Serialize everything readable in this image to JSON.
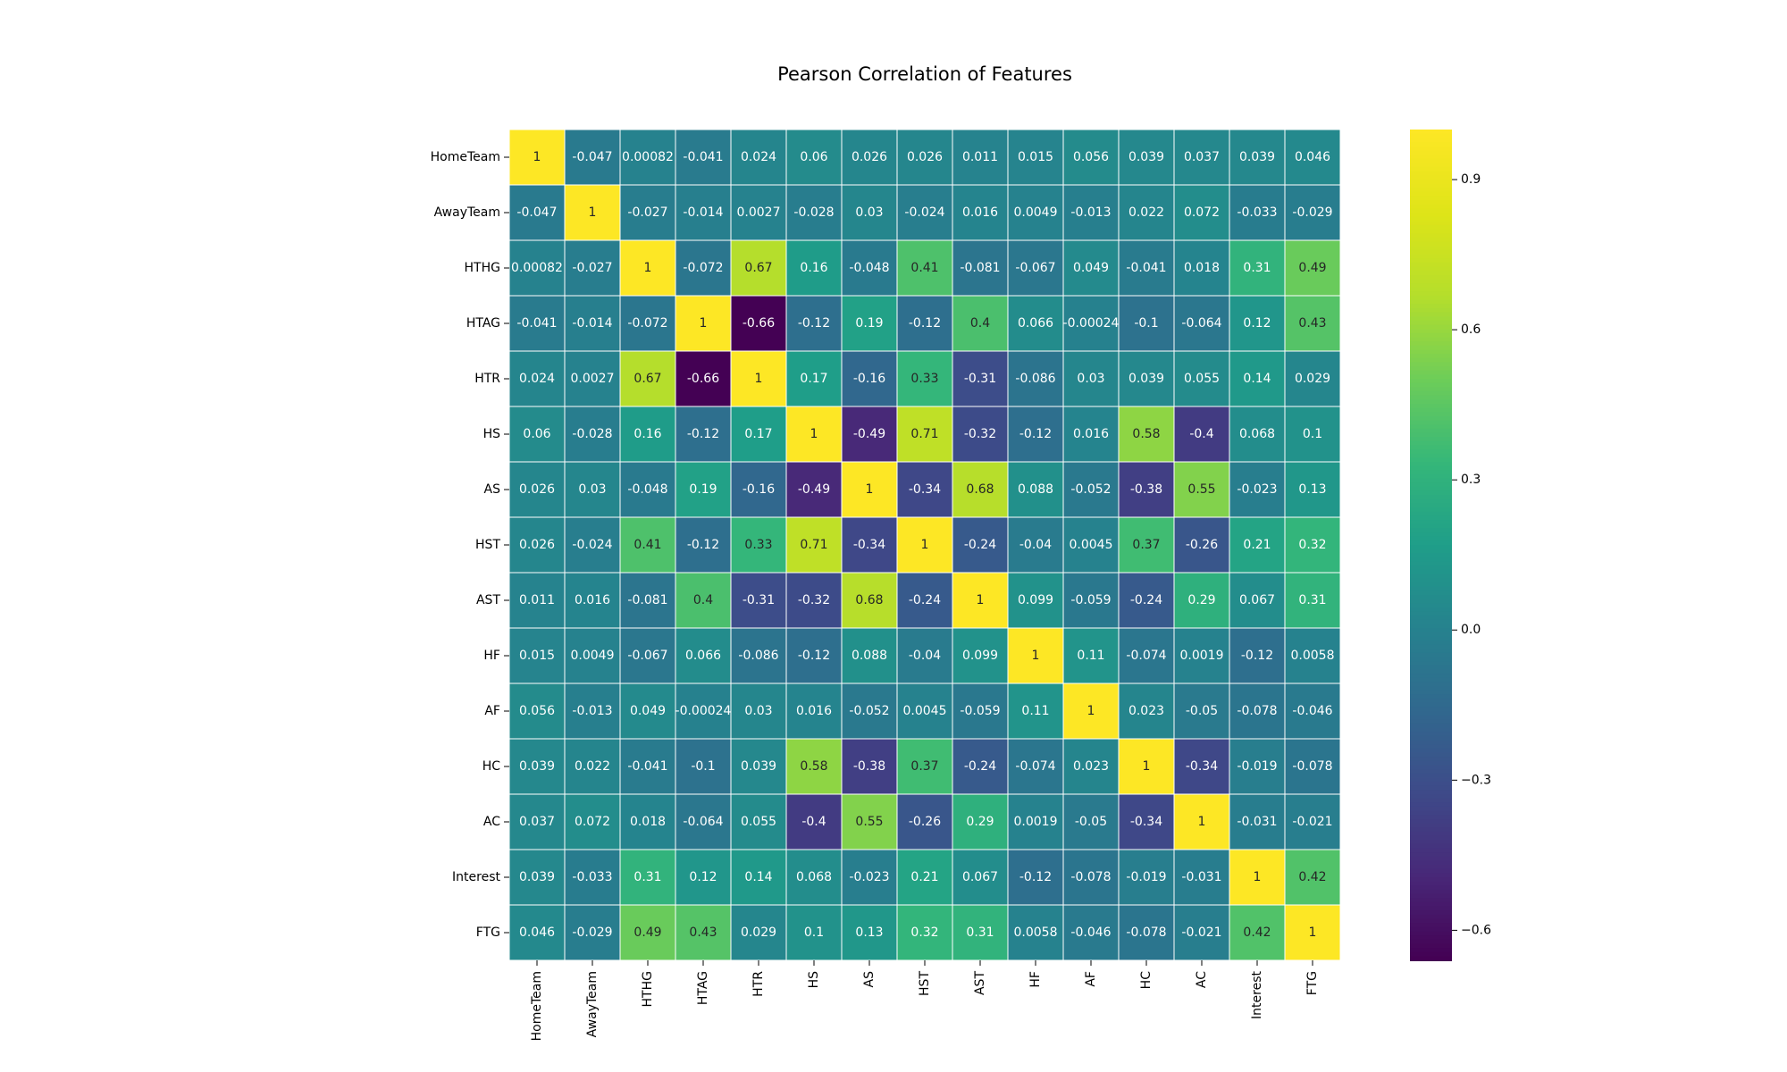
{
  "chart_data": {
    "type": "heatmap",
    "title": "Pearson Correlation of Features",
    "labels": [
      "HomeTeam",
      "AwayTeam",
      "HTHG",
      "HTAG",
      "HTR",
      "HS",
      "AS",
      "HST",
      "AST",
      "HF",
      "AF",
      "HC",
      "AC",
      "Interest",
      "FTG"
    ],
    "matrix": [
      [
        1,
        -0.047,
        0.00082,
        -0.041,
        0.024,
        0.06,
        0.026,
        0.026,
        0.011,
        0.015,
        0.056,
        0.039,
        0.037,
        0.039,
        0.046
      ],
      [
        -0.047,
        1,
        -0.027,
        -0.014,
        0.0027,
        -0.028,
        0.03,
        -0.024,
        0.016,
        0.0049,
        -0.013,
        0.022,
        0.072,
        -0.033,
        -0.029
      ],
      [
        0.00082,
        -0.027,
        1,
        -0.072,
        0.67,
        0.16,
        -0.048,
        0.41,
        -0.081,
        -0.067,
        0.049,
        -0.041,
        0.018,
        0.31,
        0.49
      ],
      [
        -0.041,
        -0.014,
        -0.072,
        1,
        -0.66,
        -0.12,
        0.19,
        -0.12,
        0.4,
        0.066,
        -0.00024,
        -0.1,
        -0.064,
        0.12,
        0.43
      ],
      [
        0.024,
        0.0027,
        0.67,
        -0.66,
        1,
        0.17,
        -0.16,
        0.33,
        -0.31,
        -0.086,
        0.03,
        0.039,
        0.055,
        0.14,
        0.029
      ],
      [
        0.06,
        -0.028,
        0.16,
        -0.12,
        0.17,
        1,
        -0.49,
        0.71,
        -0.32,
        -0.12,
        0.016,
        0.58,
        -0.4,
        0.068,
        0.1
      ],
      [
        0.026,
        0.03,
        -0.048,
        0.19,
        -0.16,
        -0.49,
        1,
        -0.34,
        0.68,
        0.088,
        -0.052,
        -0.38,
        0.55,
        -0.023,
        0.13
      ],
      [
        0.026,
        -0.024,
        0.41,
        -0.12,
        0.33,
        0.71,
        -0.34,
        1,
        -0.24,
        -0.04,
        0.0045,
        0.37,
        -0.26,
        0.21,
        0.32
      ],
      [
        0.011,
        0.016,
        -0.081,
        0.4,
        -0.31,
        -0.32,
        0.68,
        -0.24,
        1,
        0.099,
        -0.059,
        -0.24,
        0.29,
        0.067,
        0.31
      ],
      [
        0.015,
        0.0049,
        -0.067,
        0.066,
        -0.086,
        -0.12,
        0.088,
        -0.04,
        0.099,
        1,
        0.11,
        -0.074,
        0.0019,
        -0.12,
        0.0058
      ],
      [
        0.056,
        -0.013,
        0.049,
        -0.00024,
        0.03,
        0.016,
        -0.052,
        0.0045,
        -0.059,
        0.11,
        1,
        0.023,
        -0.05,
        -0.078,
        -0.046
      ],
      [
        0.039,
        0.022,
        -0.041,
        -0.1,
        0.039,
        0.58,
        -0.38,
        0.37,
        -0.24,
        -0.074,
        0.023,
        1,
        -0.34,
        -0.019,
        -0.078
      ],
      [
        0.037,
        0.072,
        0.018,
        -0.064,
        0.055,
        -0.4,
        0.55,
        -0.26,
        0.29,
        0.0019,
        -0.05,
        -0.34,
        1,
        -0.031,
        -0.021
      ],
      [
        0.039,
        -0.033,
        0.31,
        0.12,
        0.14,
        0.068,
        -0.023,
        0.21,
        0.067,
        -0.12,
        -0.078,
        -0.019,
        -0.031,
        1,
        0.42
      ],
      [
        0.046,
        -0.029,
        0.49,
        0.43,
        0.029,
        0.1,
        0.13,
        0.32,
        0.31,
        0.0058,
        -0.046,
        -0.078,
        -0.021,
        0.42,
        1
      ]
    ],
    "colormap": "viridis",
    "vmin": -0.66,
    "vmax": 1,
    "colorbar_ticks": [
      0.9,
      0.6,
      0.3,
      0.0,
      -0.3,
      -0.6
    ],
    "colorbar_tick_labels": [
      "0.9",
      "0.6",
      "0.3",
      "0.0",
      "−0.3",
      "−0.6"
    ],
    "annotations": true,
    "grid_color": "#ffffff"
  }
}
